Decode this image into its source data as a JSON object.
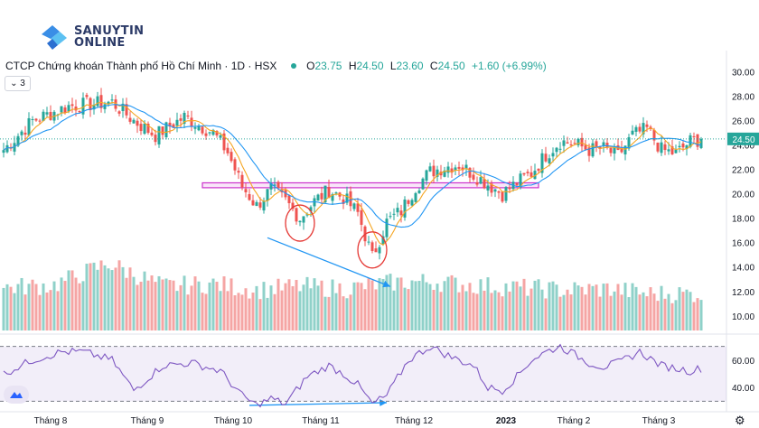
{
  "brand": {
    "line1": "SANUYTIN",
    "line2": "ONLINE"
  },
  "header": {
    "symbol": "CTCP Chứng khoán Thành phố Hồ Chí Minh · 1D · HSX",
    "o_label": "O",
    "o": "23.75",
    "h_label": "H",
    "h": "24.50",
    "l_label": "L",
    "l": "23.60",
    "c_label": "C",
    "c": "24.50",
    "change": "+1.60 (+6.99%)"
  },
  "collapse_label": "⌄ 3",
  "colors": {
    "up": "#26a69a",
    "down": "#ef5350",
    "ma_fast": "#f5a623",
    "ma_slow": "#2196f3",
    "rsi": "#7e57c2",
    "box": "#cc33cc",
    "arrow": "#2196f3"
  },
  "chart_data": {
    "type": "candlestick",
    "price_axis": {
      "range": [
        8.8,
        31.0
      ],
      "ticks": [
        "30.00",
        "28.00",
        "26.00",
        "24.00",
        "22.00",
        "20.00",
        "18.00",
        "16.00",
        "14.00",
        "12.00",
        "10.00"
      ]
    },
    "last_price_label": "24.50",
    "rsi_axis": {
      "ticks": [
        "60.00",
        "40.00"
      ],
      "band": [
        30,
        70
      ]
    },
    "x_ticks": [
      "Tháng 8",
      "Tháng 9",
      "Tháng 10",
      "Tháng 11",
      "Tháng 12",
      "2023",
      "Tháng 2",
      "Tháng 3"
    ],
    "support_box": {
      "low": 20.5,
      "high": 20.9,
      "from_bar": 55,
      "to_bar": 148
    },
    "circles": [
      {
        "bar": 82,
        "price": 17.6
      },
      {
        "bar": 102,
        "price": 15.4
      }
    ],
    "arrows": [
      {
        "pane": "price",
        "from": {
          "bar": 73,
          "price": 16.4
        },
        "to": {
          "bar": 107,
          "price": 12.4
        }
      },
      {
        "pane": "rsi",
        "from": {
          "bar": 68,
          "rsi": 27
        },
        "to": {
          "bar": 106,
          "rsi": 29
        }
      }
    ],
    "anchors": [
      [
        0,
        23.6
      ],
      [
        8,
        26.0
      ],
      [
        18,
        27.2
      ],
      [
        30,
        27.5
      ],
      [
        36,
        26.0
      ],
      [
        42,
        24.8
      ],
      [
        50,
        26.3
      ],
      [
        58,
        25.0
      ],
      [
        62,
        23.4
      ],
      [
        66,
        20.6
      ],
      [
        70,
        19.0
      ],
      [
        74,
        20.4
      ],
      [
        78,
        19.4
      ],
      [
        82,
        18.0
      ],
      [
        86,
        19.4
      ],
      [
        90,
        20.3
      ],
      [
        94,
        19.7
      ],
      [
        98,
        18.4
      ],
      [
        102,
        14.8
      ],
      [
        106,
        17.7
      ],
      [
        110,
        18.6
      ],
      [
        114,
        20.6
      ],
      [
        118,
        21.8
      ],
      [
        122,
        22.2
      ],
      [
        126,
        22.4
      ],
      [
        130,
        21.6
      ],
      [
        134,
        20.8
      ],
      [
        138,
        20.0
      ],
      [
        142,
        20.9
      ],
      [
        146,
        21.7
      ],
      [
        150,
        23.2
      ],
      [
        154,
        24.3
      ],
      [
        158,
        24.1
      ],
      [
        162,
        23.6
      ],
      [
        166,
        23.7
      ],
      [
        170,
        23.1
      ],
      [
        174,
        24.8
      ],
      [
        178,
        25.3
      ],
      [
        182,
        23.6
      ],
      [
        186,
        23.3
      ],
      [
        190,
        24.3
      ],
      [
        193,
        24.5
      ]
    ],
    "volume_range": [
      0,
      13
    ],
    "volume_lows": [
      [
        0,
        12.0
      ],
      [
        14,
        12.2
      ],
      [
        29,
        14.0
      ],
      [
        44,
        12.1
      ],
      [
        58,
        12.3
      ],
      [
        70,
        11.8
      ],
      [
        82,
        12.1
      ],
      [
        95,
        11.9
      ],
      [
        107,
        12.4
      ],
      [
        118,
        12.5
      ],
      [
        130,
        12.2
      ],
      [
        142,
        12.0
      ],
      [
        155,
        11.8
      ],
      [
        168,
        11.9
      ],
      [
        178,
        11.5
      ],
      [
        193,
        11.5
      ]
    ],
    "rsi_values": [
      [
        0,
        50
      ],
      [
        8,
        60
      ],
      [
        16,
        66
      ],
      [
        22,
        66
      ],
      [
        30,
        60
      ],
      [
        36,
        38
      ],
      [
        44,
        56
      ],
      [
        52,
        58
      ],
      [
        60,
        52
      ],
      [
        66,
        34
      ],
      [
        70,
        27
      ],
      [
        74,
        32
      ],
      [
        78,
        28
      ],
      [
        84,
        48
      ],
      [
        90,
        56
      ],
      [
        94,
        50
      ],
      [
        98,
        42
      ],
      [
        102,
        28
      ],
      [
        106,
        34
      ],
      [
        112,
        60
      ],
      [
        118,
        70
      ],
      [
        124,
        62
      ],
      [
        130,
        56
      ],
      [
        134,
        40
      ],
      [
        138,
        38
      ],
      [
        142,
        48
      ],
      [
        146,
        60
      ],
      [
        150,
        66
      ],
      [
        154,
        70
      ],
      [
        158,
        64
      ],
      [
        162,
        58
      ],
      [
        166,
        55
      ],
      [
        170,
        58
      ],
      [
        176,
        66
      ],
      [
        182,
        56
      ],
      [
        186,
        54
      ],
      [
        190,
        52
      ],
      [
        193,
        54
      ]
    ]
  }
}
